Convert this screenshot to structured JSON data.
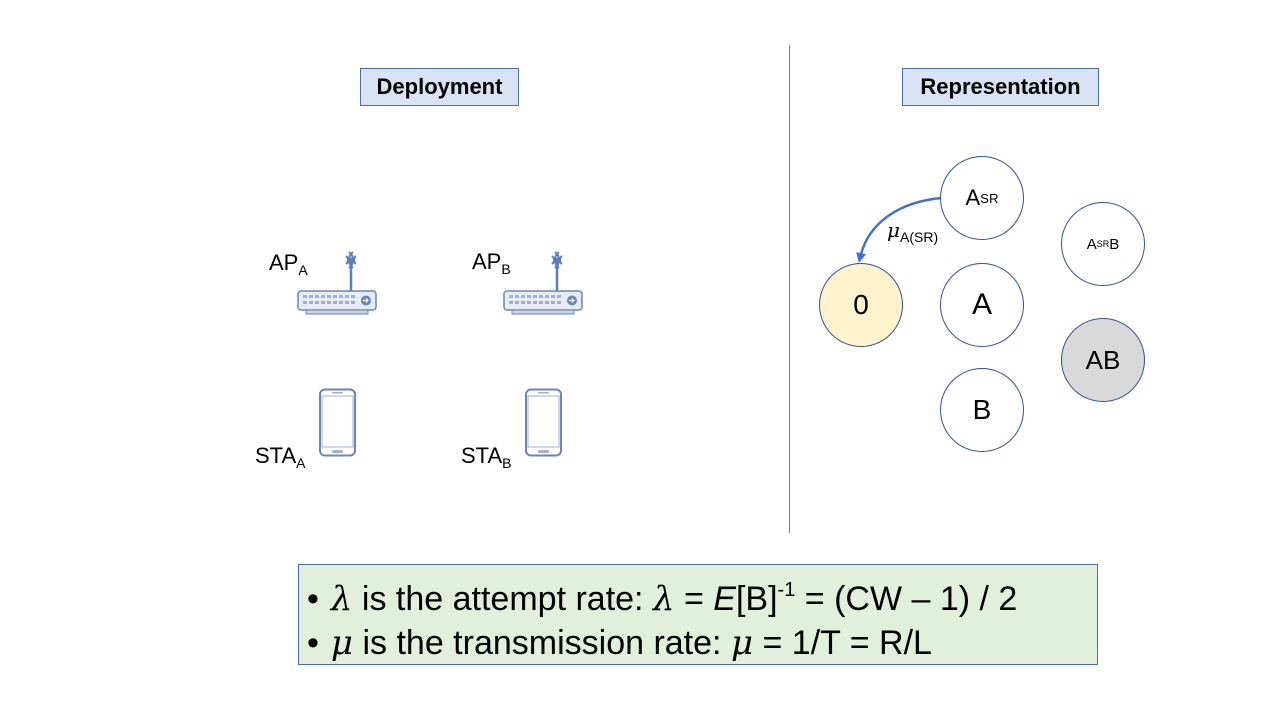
{
  "deployment": {
    "title": "Deployment",
    "devices": {
      "ap_a": {
        "base": "AP",
        "sub": "A"
      },
      "ap_b": {
        "base": "AP",
        "sub": "B"
      },
      "sta_a": {
        "base": "STA",
        "sub": "A"
      },
      "sta_b": {
        "base": "STA",
        "sub": "B"
      }
    },
    "icons": {
      "access_point": "router-icon",
      "station": "smartphone-icon"
    }
  },
  "representation": {
    "title": "Representation",
    "states": {
      "zero": {
        "base": "0",
        "sup": ""
      },
      "asr": {
        "base": "A",
        "sup": "SR"
      },
      "a": {
        "base": "A",
        "sup": ""
      },
      "b": {
        "base": "B",
        "sup": ""
      },
      "asrb": {
        "base": "A",
        "sup": "SR",
        "tail": "B"
      },
      "ab": {
        "base": "AB",
        "sup": ""
      }
    },
    "transition": {
      "from": "A^SR",
      "to": "0",
      "symbol": "μ",
      "sub": "A(SR)"
    },
    "colors": {
      "idle_state": "#fff2cc",
      "collision_state": "#d9d9d9",
      "default_state": "#ffffff",
      "accent": "#4472c4"
    }
  },
  "formulas": {
    "bullet": "•",
    "lambda": {
      "sym": "λ",
      "text1": " is the attempt rate: ",
      "sym2": "λ",
      "text2": " = ",
      "e": "E",
      "text3": "[B]",
      "sup": "-1",
      "text4": " = (CW – 1) / 2"
    },
    "mu": {
      "sym": "μ",
      "text1": " is the transmission rate: ",
      "sym2": "μ",
      "text2": " = 1/T = R/L"
    }
  }
}
